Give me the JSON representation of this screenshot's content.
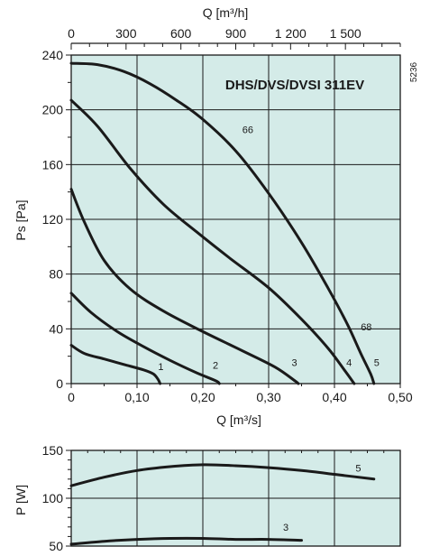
{
  "chart_data": [
    {
      "type": "line",
      "title": "DHS/DVS/DVSI 311EV",
      "side_code": "5236",
      "xlabel": "Q [m³/s]",
      "ylabel": "Ps [Pa]",
      "top_xlabel": "Q [m³/h]",
      "xlim": [
        0,
        0.5
      ],
      "ylim": [
        0,
        240
      ],
      "top_xlim": [
        0,
        1800
      ],
      "x_ticks": [
        "0",
        "0,10",
        "0,20",
        "0,30",
        "0,40",
        "0,50"
      ],
      "y_ticks": [
        "0",
        "40",
        "80",
        "120",
        "160",
        "200",
        "240"
      ],
      "top_ticks": [
        "0",
        "300",
        "600",
        "900",
        "1 200",
        "1 500"
      ],
      "grid": true,
      "background_color": "#d4ebe8",
      "line_color": "#1a1a1a",
      "series": [
        {
          "name": "1",
          "x": [
            0,
            0.02,
            0.05,
            0.08,
            0.11,
            0.125,
            0.132,
            0.135
          ],
          "y": [
            28,
            22,
            18,
            14,
            10,
            7,
            3,
            0
          ]
        },
        {
          "name": "2",
          "x": [
            0,
            0.03,
            0.07,
            0.11,
            0.15,
            0.19,
            0.22,
            0.225
          ],
          "y": [
            66,
            52,
            38,
            27,
            17,
            8,
            2,
            0
          ]
        },
        {
          "name": "3",
          "x": [
            0,
            0.02,
            0.05,
            0.09,
            0.14,
            0.2,
            0.26,
            0.31,
            0.34,
            0.345
          ],
          "y": [
            142,
            118,
            90,
            69,
            53,
            38,
            24,
            12,
            2,
            0
          ]
        },
        {
          "name": "4",
          "x": [
            0,
            0.04,
            0.09,
            0.14,
            0.19,
            0.24,
            0.3,
            0.35,
            0.39,
            0.415,
            0.43
          ],
          "y": [
            207,
            188,
            157,
            131,
            111,
            92,
            70,
            47,
            26,
            10,
            0
          ]
        },
        {
          "name": "5",
          "x": [
            0,
            0.04,
            0.08,
            0.12,
            0.16,
            0.2,
            0.25,
            0.3,
            0.35,
            0.39,
            0.42,
            0.44,
            0.455,
            0.46
          ],
          "y": [
            234,
            233,
            228,
            219,
            207,
            193,
            170,
            139,
            103,
            70,
            43,
            22,
            7,
            0
          ]
        }
      ],
      "annotations": [
        {
          "text": "66",
          "x": 0.26,
          "y": 183
        },
        {
          "text": "68",
          "x": 0.44,
          "y": 39
        },
        {
          "text": "1",
          "x": 0.132,
          "y": 10
        },
        {
          "text": "2",
          "x": 0.215,
          "y": 11
        },
        {
          "text": "3",
          "x": 0.335,
          "y": 13
        },
        {
          "text": "4",
          "x": 0.418,
          "y": 13
        },
        {
          "text": "5",
          "x": 0.46,
          "y": 13
        }
      ]
    },
    {
      "type": "line",
      "ylabel": "P [W]",
      "xlim": [
        0,
        0.5
      ],
      "ylim": [
        50,
        150
      ],
      "y_ticks": [
        "50",
        "100",
        "150"
      ],
      "grid": true,
      "background_color": "#d4ebe8",
      "series": [
        {
          "name": "5",
          "x": [
            0,
            0.05,
            0.1,
            0.15,
            0.2,
            0.25,
            0.3,
            0.35,
            0.4,
            0.46
          ],
          "y": [
            113,
            122,
            129,
            133,
            135,
            134,
            132,
            129,
            125,
            120
          ]
        },
        {
          "name": "3",
          "x": [
            0,
            0.05,
            0.1,
            0.15,
            0.2,
            0.25,
            0.3,
            0.35
          ],
          "y": [
            52,
            55,
            57,
            58,
            58,
            57,
            57,
            56
          ]
        }
      ],
      "annotations": [
        {
          "text": "5",
          "x": 0.432,
          "y": 128
        },
        {
          "text": "3",
          "x": 0.322,
          "y": 66
        }
      ]
    }
  ]
}
